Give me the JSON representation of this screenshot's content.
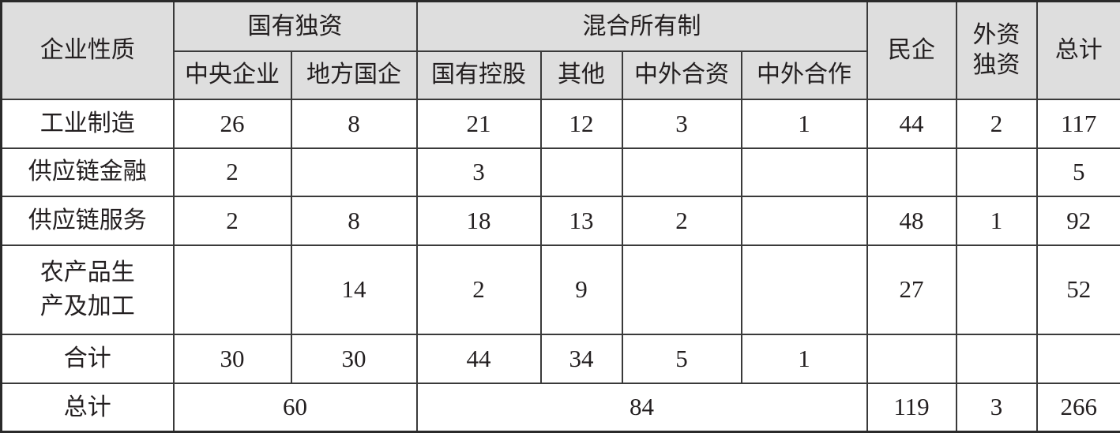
{
  "table": {
    "header_row1": {
      "corner": "企业性质",
      "group_state": "国有独资",
      "group_mixed": "混合所有制",
      "private": "民企",
      "foreign": "外资\n独资",
      "total": "总计"
    },
    "header_row2": [
      "中央企业",
      "地方国企",
      "国有控股",
      "其他",
      "中外合资",
      "中外合作"
    ],
    "rows": [
      {
        "label": "工业制造",
        "cells": [
          "26",
          "8",
          "21",
          "12",
          "3",
          "1",
          "44",
          "2",
          "117"
        ]
      },
      {
        "label": "供应链金融",
        "cells": [
          "2",
          "",
          "3",
          "",
          "",
          "",
          "",
          "",
          "5"
        ]
      },
      {
        "label": "供应链服务",
        "cells": [
          "2",
          "8",
          "18",
          "13",
          "2",
          "",
          "48",
          "1",
          "92"
        ]
      },
      {
        "label": "农产品生\n产及加工",
        "cells": [
          "",
          "14",
          "2",
          "9",
          "",
          "",
          "27",
          "",
          "52"
        ]
      },
      {
        "label": "合计",
        "cells": [
          "30",
          "30",
          "44",
          "34",
          "5",
          "1",
          "",
          "",
          ""
        ]
      }
    ],
    "total_row": {
      "label": "总计",
      "state": "60",
      "mixed": "84",
      "private": "119",
      "foreign": "3",
      "total": "266"
    }
  },
  "colors": {
    "header_bg": "#dedede",
    "border": "#3a3a3a"
  }
}
